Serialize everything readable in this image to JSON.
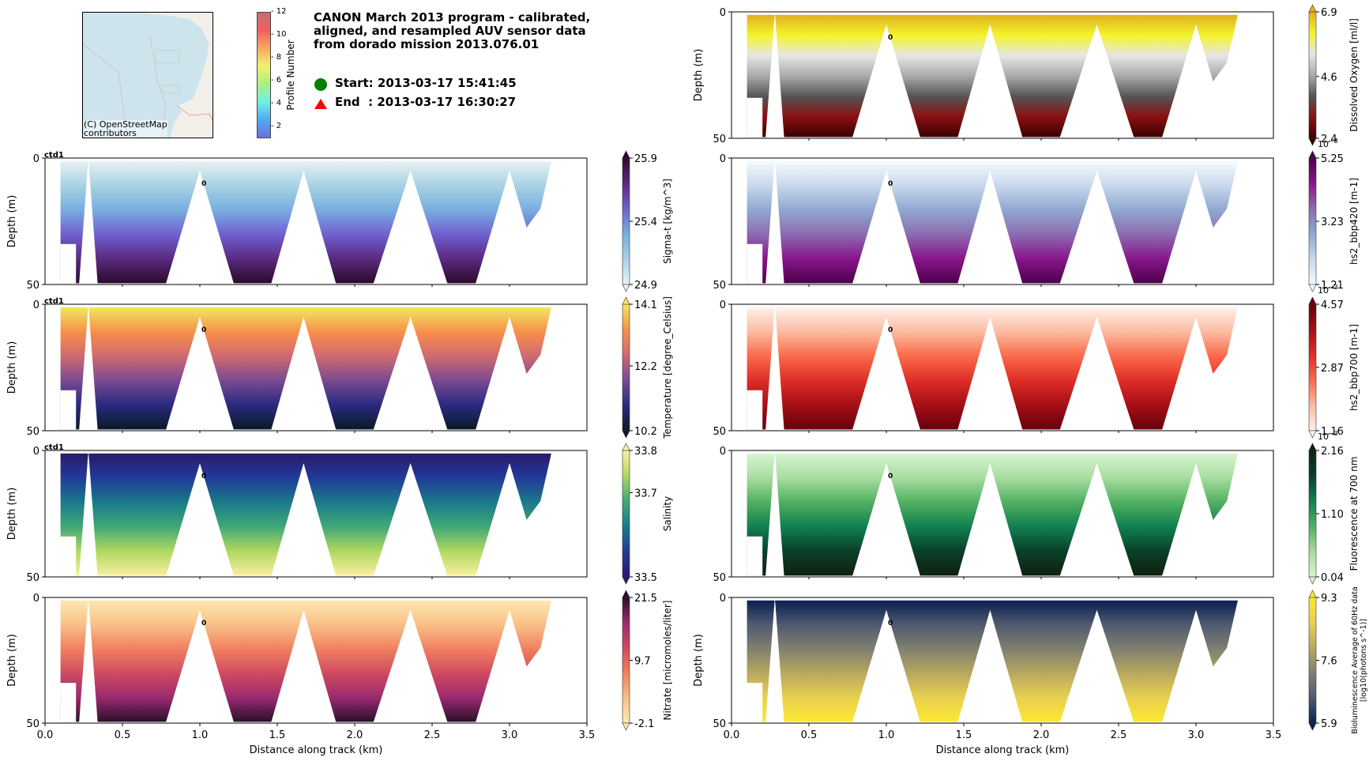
{
  "header": {
    "title": "CANON March 2013 program - calibrated,\naligned, and resampled AUV sensor data\nfrom dorado mission 2013.076.01",
    "start_label": "Start: 2013-03-17 15:41:45",
    "end_label": "End  : 2013-03-17 16:30:27",
    "start_marker_color": "#008000",
    "end_marker_color": "#ff0000"
  },
  "map": {
    "attribution": "(C) OpenStreetMap\ncontributors",
    "water_color": "#cde4ec",
    "land_color": "#f2efe9"
  },
  "profile_colorbar": {
    "label": "Profile Number",
    "ticks": [
      "2",
      "4",
      "6",
      "8",
      "10",
      "12"
    ],
    "range": [
      1,
      12
    ]
  },
  "chart_data": [
    {
      "type": "heatmap",
      "id": "dissolved_oxygen",
      "column": "right",
      "row": 0,
      "xlabel": "",
      "ylabel": "Depth (m)",
      "xlim": [
        0,
        3.5
      ],
      "ylim": [
        50,
        0
      ],
      "yticks": [
        "0",
        "50"
      ],
      "colorbar": {
        "label": "Dissolved Oxygen [ml/l]",
        "ticks": [
          "6.9",
          "4.6",
          "2.4"
        ],
        "min": 2.4,
        "max": 6.9,
        "exponent": ""
      },
      "colors": [
        "#3a0000",
        "#8b1010",
        "#555555",
        "#aaaaaa",
        "#e6e6e6",
        "#f4f42a",
        "#e0b020"
      ],
      "profile_label": "0",
      "profile_label_x": 1.01,
      "ctd_label": ""
    },
    {
      "type": "heatmap",
      "id": "sigma_t",
      "column": "left",
      "row": 1,
      "xlabel": "",
      "ylabel": "Depth (m)",
      "xlim": [
        0,
        3.5
      ],
      "ylim": [
        50,
        0
      ],
      "yticks": [
        "0",
        "50"
      ],
      "colorbar": {
        "label": "Sigma-t [kg/m^3]",
        "ticks": [
          "25.9",
          "25.4",
          "24.9"
        ],
        "min": 24.9,
        "max": 25.9,
        "exponent": ""
      },
      "colors": [
        "#e8f2f2",
        "#a8d2e4",
        "#78aee0",
        "#7060d0",
        "#5a2a80",
        "#2a0a2a"
      ],
      "profile_label": "0",
      "profile_label_x": 1.01,
      "ctd_label": "ctd1"
    },
    {
      "type": "heatmap",
      "id": "bbp420",
      "column": "right",
      "row": 1,
      "xlabel": "",
      "ylabel": "",
      "xlim": [
        0,
        3.5
      ],
      "ylim": [
        50,
        0
      ],
      "yticks": [
        "0",
        "50"
      ],
      "colorbar": {
        "label": "hs2_bbp420 [m-1]",
        "ticks": [
          "5.25",
          "3.23",
          "1.21"
        ],
        "min": 1.21,
        "max": 5.25,
        "exponent": "10^-3"
      },
      "colors": [
        "#f6fafd",
        "#c8d8ec",
        "#90a8d0",
        "#8c6bb1",
        "#88168a",
        "#4d004b"
      ],
      "profile_label": "0",
      "profile_label_x": 1.01,
      "ctd_label": ""
    },
    {
      "type": "heatmap",
      "id": "temperature",
      "column": "left",
      "row": 2,
      "xlabel": "",
      "ylabel": "Depth (m)",
      "xlim": [
        0,
        3.5
      ],
      "ylim": [
        50,
        0
      ],
      "yticks": [
        "0",
        "50"
      ],
      "colorbar": {
        "label": "Temperature [degree_Celsius]",
        "ticks": [
          "14.1",
          "12.2",
          "10.2"
        ],
        "min": 10.2,
        "max": 14.1,
        "exponent": ""
      },
      "colors": [
        "#0a1a28",
        "#2a2a80",
        "#7a4a90",
        "#d06a70",
        "#f8904a",
        "#f0e860"
      ],
      "profile_label": "0",
      "profile_label_x": 1.01,
      "ctd_label": "ctd1"
    },
    {
      "type": "heatmap",
      "id": "bbp700",
      "column": "right",
      "row": 2,
      "xlabel": "",
      "ylabel": "",
      "xlim": [
        0,
        3.5
      ],
      "ylim": [
        50,
        0
      ],
      "yticks": [
        "0",
        "50"
      ],
      "colorbar": {
        "label": "hs2_bbp700 [m-1]",
        "ticks": [
          "4.57",
          "2.87",
          "1.16"
        ],
        "min": 1.16,
        "max": 4.57,
        "exponent": "10^-3"
      },
      "colors": [
        "#fff2ec",
        "#fcbba1",
        "#fb6a4a",
        "#de2d26",
        "#a50f15",
        "#67000d"
      ],
      "profile_label": "0",
      "profile_label_x": 1.01,
      "ctd_label": ""
    },
    {
      "type": "heatmap",
      "id": "salinity",
      "column": "left",
      "row": 3,
      "xlabel": "",
      "ylabel": "Depth (m)",
      "xlim": [
        0,
        3.5
      ],
      "ylim": [
        50,
        0
      ],
      "yticks": [
        "0",
        "50"
      ],
      "colorbar": {
        "label": "Salinity",
        "ticks": [
          "33.8",
          "33.7",
          "33.5"
        ],
        "min": 33.5,
        "max": 33.8,
        "exponent": ""
      },
      "colors": [
        "#2a1a6a",
        "#223a9a",
        "#1a7a8a",
        "#40a878",
        "#b0d860",
        "#f8f0a0"
      ],
      "profile_label": "0",
      "profile_label_x": 1.01,
      "ctd_label": "ctd1"
    },
    {
      "type": "heatmap",
      "id": "fluorescence",
      "column": "right",
      "row": 3,
      "xlabel": "",
      "ylabel": "",
      "xlim": [
        0,
        3.5
      ],
      "ylim": [
        50,
        0
      ],
      "yticks": [
        "0",
        "50"
      ],
      "colorbar": {
        "label": "Fluorescence at 700 nm",
        "ticks": [
          "2.16",
          "1.10",
          "0.04"
        ],
        "min": 0.04,
        "max": 2.16,
        "exponent": "10^-3"
      },
      "colors": [
        "#d8f5d0",
        "#a8dca0",
        "#50b060",
        "#108050",
        "#0a4028",
        "#102010"
      ],
      "profile_label": "0",
      "profile_label_x": 1.01,
      "ctd_label": ""
    },
    {
      "type": "heatmap",
      "id": "nitrate",
      "column": "left",
      "row": 4,
      "xlabel": "Distance along track (km)",
      "ylabel": "Depth (m)",
      "xlim": [
        0,
        3.5
      ],
      "ylim": [
        50,
        0
      ],
      "xticks": [
        "0.0",
        "0.5",
        "1.0",
        "1.5",
        "2.0",
        "2.5",
        "3.0",
        "3.5"
      ],
      "yticks": [
        "0",
        "50"
      ],
      "colorbar": {
        "label": "Nitrate [micromoles/liter]",
        "ticks": [
          "21.5",
          "9.7",
          "-2.1"
        ],
        "min": -2.1,
        "max": 21.5,
        "exponent": ""
      },
      "colors": [
        "#fde8b0",
        "#f8c088",
        "#f08060",
        "#d04a60",
        "#9a2a70",
        "#2a102a"
      ],
      "profile_label": "0",
      "profile_label_x": 1.01,
      "ctd_label": ""
    },
    {
      "type": "heatmap",
      "id": "bioluminescence",
      "column": "right",
      "row": 4,
      "xlabel": "Distance along track (km)",
      "ylabel": "Depth (m)",
      "xlim": [
        0,
        3.5
      ],
      "ylim": [
        50,
        0
      ],
      "xticks": [
        "0.0",
        "0.5",
        "1.0",
        "1.5",
        "2.0",
        "2.5",
        "3.0",
        "3.5"
      ],
      "yticks": [
        "0",
        "50"
      ],
      "colorbar": {
        "label": "Bioluminescence Average of 60Hz data\n[log10(photons s^-1)]",
        "ticks": [
          "9.3",
          "7.6",
          "5.9"
        ],
        "min": 5.9,
        "max": 9.3,
        "exponent": ""
      },
      "colors": [
        "#0a2050",
        "#505a70",
        "#808070",
        "#b8a860",
        "#e8d050",
        "#fde830"
      ],
      "profile_label": "0",
      "profile_label_x": 1.01,
      "ctd_label": ""
    }
  ],
  "vehicle_track": {
    "dive_apex_x_km": [
      0.28,
      1.0,
      1.67,
      2.36,
      3.0
    ],
    "surface_gap_x_km": [
      0.22,
      0.78,
      1.46,
      2.12,
      2.78
    ],
    "apex_depth_m": [
      0,
      5,
      5,
      5,
      5
    ],
    "data_start_km": 0.1,
    "data_end_km": 3.27
  }
}
